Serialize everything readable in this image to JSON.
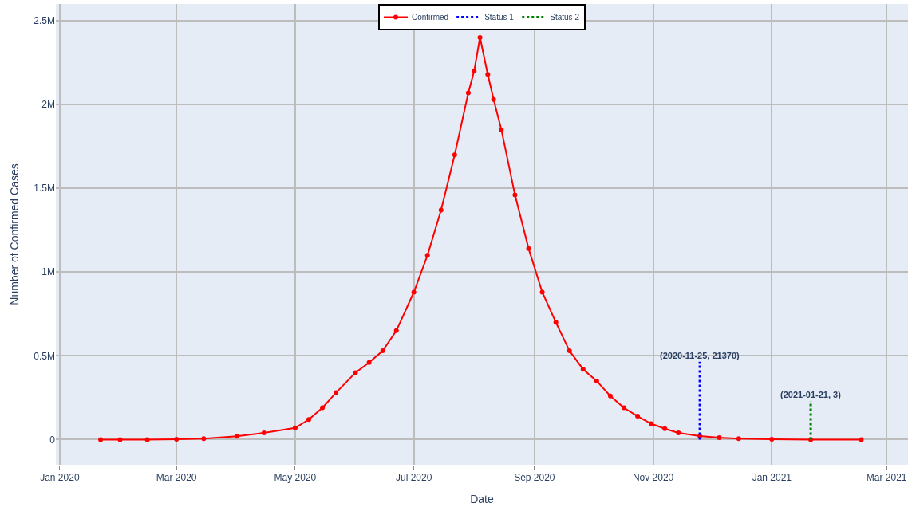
{
  "chart_data": {
    "type": "line",
    "xlabel": "Date",
    "ylabel": "Number of Confirmed Cases",
    "series": [
      {
        "name": "Confirmed",
        "color": "#ff0000",
        "marker": "circle",
        "line_style": "solid",
        "x": [
          "2020-01-22",
          "2020-02-01",
          "2020-02-15",
          "2020-03-01",
          "2020-03-15",
          "2020-04-01",
          "2020-04-15",
          "2020-05-01",
          "2020-05-08",
          "2020-05-15",
          "2020-05-22",
          "2020-06-01",
          "2020-06-08",
          "2020-06-15",
          "2020-06-22",
          "2020-07-01",
          "2020-07-08",
          "2020-07-15",
          "2020-07-22",
          "2020-07-29",
          "2020-08-01",
          "2020-08-04",
          "2020-08-08",
          "2020-08-11",
          "2020-08-15",
          "2020-08-22",
          "2020-08-29",
          "2020-09-05",
          "2020-09-12",
          "2020-09-19",
          "2020-09-26",
          "2020-10-03",
          "2020-10-10",
          "2020-10-17",
          "2020-10-24",
          "2020-10-31",
          "2020-11-07",
          "2020-11-14",
          "2020-11-25",
          "2020-12-05",
          "2020-12-15",
          "2021-01-01",
          "2021-01-21",
          "2021-02-16"
        ],
        "values": [
          0,
          0,
          0,
          2000,
          6000,
          20000,
          40000,
          70000,
          120000,
          190000,
          280000,
          400000,
          460000,
          530000,
          650000,
          880000,
          1100000,
          1370000,
          1700000,
          2070000,
          2200000,
          2400000,
          2180000,
          2030000,
          1850000,
          1460000,
          1140000,
          880000,
          700000,
          530000,
          420000,
          350000,
          260000,
          190000,
          140000,
          95000,
          65000,
          40000,
          21370,
          12000,
          6000,
          2000,
          3,
          0
        ]
      },
      {
        "name": "Status 1",
        "color": "#0000ff",
        "marker": "none",
        "line_style": "dotted",
        "x": [
          "2020-11-25",
          "2020-11-25"
        ],
        "values": [
          0,
          465000
        ]
      },
      {
        "name": "Status 2",
        "color": "#008000",
        "marker": "none",
        "line_style": "dotted",
        "x": [
          "2021-01-21",
          "2021-01-21"
        ],
        "values": [
          0,
          230000
        ]
      }
    ],
    "annotations": [
      {
        "text": "(2020-11-25, 21370)",
        "x": "2020-11-25",
        "y": 465000
      },
      {
        "text": "(2021-01-21, 3)",
        "x": "2021-01-21",
        "y": 230000
      }
    ],
    "xlim": [
      "2019-12-30",
      "2021-03-12"
    ],
    "xticks": [
      {
        "value": "2020-01-01",
        "label": "Jan 2020"
      },
      {
        "value": "2020-03-01",
        "label": "Mar 2020"
      },
      {
        "value": "2020-05-01",
        "label": "May 2020"
      },
      {
        "value": "2020-07-01",
        "label": "Jul 2020"
      },
      {
        "value": "2020-09-01",
        "label": "Sep 2020"
      },
      {
        "value": "2020-11-01",
        "label": "Nov 2020"
      },
      {
        "value": "2021-01-01",
        "label": "Jan 2021"
      },
      {
        "value": "2021-03-01",
        "label": "Mar 2021"
      }
    ],
    "ylim": [
      -150000,
      2600000
    ],
    "yticks": [
      0,
      {
        "value": 500000,
        "label": "0.5M"
      },
      {
        "value": 1000000,
        "label": "1M"
      },
      {
        "value": 1500000,
        "label": "1.5M"
      },
      {
        "value": 2000000,
        "label": "2M"
      },
      {
        "value": 2500000,
        "label": "2.5M"
      }
    ],
    "grid": true,
    "legend": "top"
  }
}
